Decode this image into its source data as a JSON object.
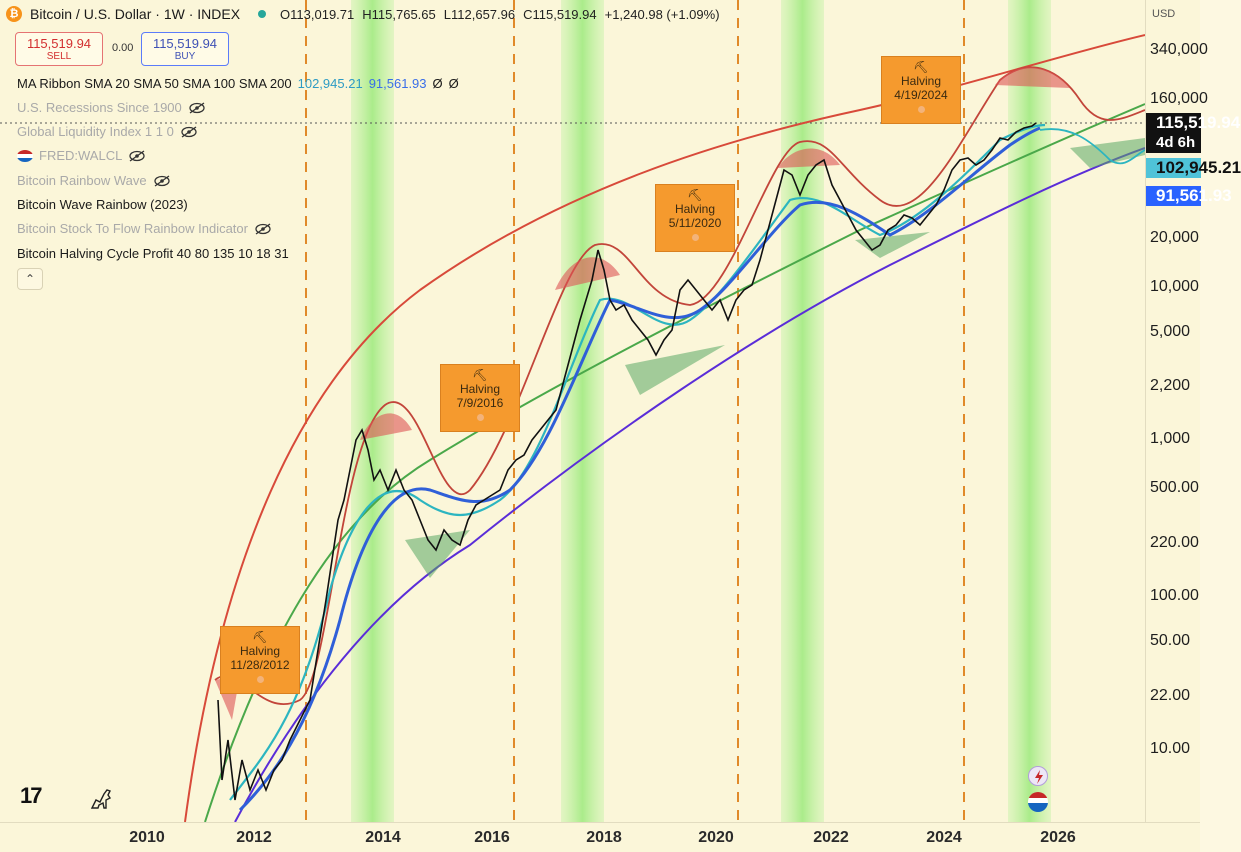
{
  "header": {
    "symbol": "Bitcoin / U.S. Dollar · 1W · INDEX",
    "open": "O113,019.71",
    "high": "H115,765.65",
    "low": "L112,657.96",
    "close": "C115,519.94",
    "change": "+1,240.98 (+1.09%)"
  },
  "trade": {
    "sell_price": "115,519.94",
    "sell_label": "SELL",
    "spread": "0.00",
    "buy_price": "115,519.94",
    "buy_label": "BUY"
  },
  "indicators": {
    "ma_ribbon": "MA Ribbon SMA 20 SMA 50 SMA 100 SMA 200",
    "ma_val1": "102,945.21",
    "ma_val2": "91,561.93",
    "ma_val3": "Ø",
    "ma_val4": "Ø",
    "recessions": "U.S. Recessions Since 1900",
    "liquidity": "Global Liquidity Index 1 1 0",
    "fred": "FRED:WALCL",
    "rainbow_wave": "Bitcoin Rainbow Wave",
    "wave_rainbow": "Bitcoin Wave Rainbow (2023)",
    "s2f": "Bitcoin Stock To Flow Rainbow Indicator",
    "halving_profit": "Bitcoin Halving Cycle Profit 40 80 135 10 18 31"
  },
  "collapse_glyph": "⌃",
  "halvings": [
    {
      "pick": "⛏",
      "label": "Halving",
      "date": "11/28/2012"
    },
    {
      "pick": "⛏",
      "label": "Halving",
      "date": "7/9/2016"
    },
    {
      "pick": "⛏",
      "label": "Halving",
      "date": "5/11/2020"
    },
    {
      "pick": "⛏",
      "label": "Halving",
      "date": "4/19/2024"
    }
  ],
  "price_scale": {
    "currency": "USD",
    "ticks": [
      "340,000",
      "160,000",
      "20,000",
      "10,000",
      "5,000",
      "2,200",
      "1,000",
      "500.00",
      "220.00",
      "100.00",
      "50.00",
      "22.00",
      "10.00"
    ],
    "last_price": "115,519.94",
    "countdown": "4d 6h",
    "ma1": "102,945.21",
    "ma2": "91,561.93"
  },
  "time_scale": {
    "ticks": [
      "2010",
      "2012",
      "2014",
      "2016",
      "2018",
      "2020",
      "2022",
      "2024",
      "2026"
    ]
  },
  "logo": "17",
  "colors": {
    "background": "#fbf6d9",
    "halving_box": "#f59a2e",
    "top_band": "#d64545",
    "bottom_band": "#5b2bd6",
    "green_band": "#6dbb4a",
    "ma_blue": "#2f5fd8",
    "ma_teal": "#2cb5c0"
  }
}
